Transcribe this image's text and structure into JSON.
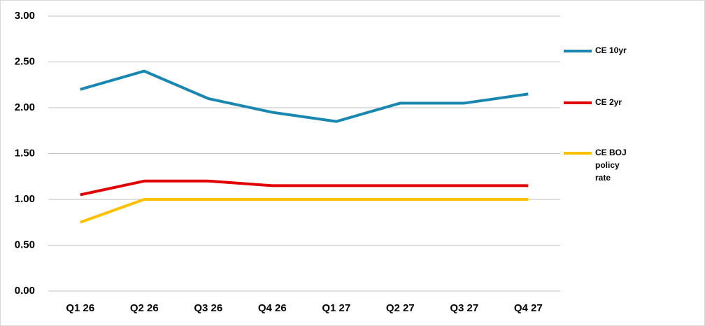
{
  "chart_data": {
    "type": "line",
    "categories": [
      "Q1 26",
      "Q2 26",
      "Q3 26",
      "Q4 26",
      "Q1 27",
      "Q2 27",
      "Q3 27",
      "Q4 27"
    ],
    "series": [
      {
        "name": "CE 10yr",
        "color": "#1a87b0",
        "values": [
          2.2,
          2.4,
          2.1,
          1.95,
          1.85,
          2.05,
          2.05,
          2.15
        ]
      },
      {
        "name": "CE 2yr",
        "color": "#e00000",
        "values": [
          1.05,
          1.2,
          1.2,
          1.15,
          1.15,
          1.15,
          1.15,
          1.15
        ]
      },
      {
        "name": "CE BOJ policy rate",
        "color": "#ffc000",
        "values": [
          0.75,
          1.0,
          1.0,
          1.0,
          1.0,
          1.0,
          1.0,
          1.0
        ]
      }
    ],
    "ylim": [
      0,
      3
    ],
    "yticks": [
      {
        "value": 0,
        "label": "0.00"
      },
      {
        "value": 0.5,
        "label": "0.50"
      },
      {
        "value": 1,
        "label": "1.00"
      },
      {
        "value": 1.5,
        "label": "1.50"
      },
      {
        "value": 2,
        "label": "2.00"
      },
      {
        "value": 2.5,
        "label": "2.50"
      },
      {
        "value": 3,
        "label": "3.00"
      }
    ],
    "grid": true,
    "legend": "right"
  }
}
